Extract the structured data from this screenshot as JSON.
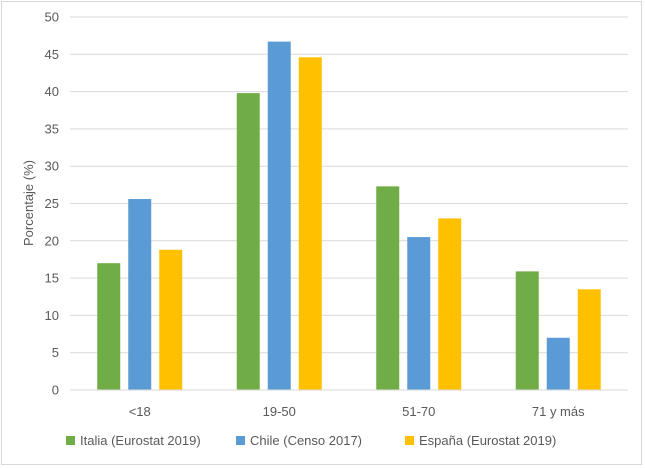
{
  "chart_data": {
    "type": "bar",
    "ylabel": "Porcentaje (%)",
    "xlabel": "",
    "ylim": [
      0,
      50
    ],
    "yticks": [
      0,
      5,
      10,
      15,
      20,
      25,
      30,
      35,
      40,
      45,
      50
    ],
    "grid": true,
    "legend": "bottom",
    "categories": [
      "<18",
      "19-50",
      "51-70",
      "71 y más"
    ],
    "series": [
      {
        "name": "Italia (Eurostat 2019)",
        "color": "#70ad47",
        "values": [
          17.0,
          39.8,
          27.3,
          15.9
        ]
      },
      {
        "name": "Chile (Censo 2017)",
        "color": "#5b9bd5",
        "values": [
          25.6,
          46.7,
          20.5,
          7.0
        ]
      },
      {
        "name": "España (Eurostat 2019)",
        "color": "#ffc000",
        "values": [
          18.8,
          44.6,
          23.0,
          13.5
        ]
      }
    ]
  }
}
